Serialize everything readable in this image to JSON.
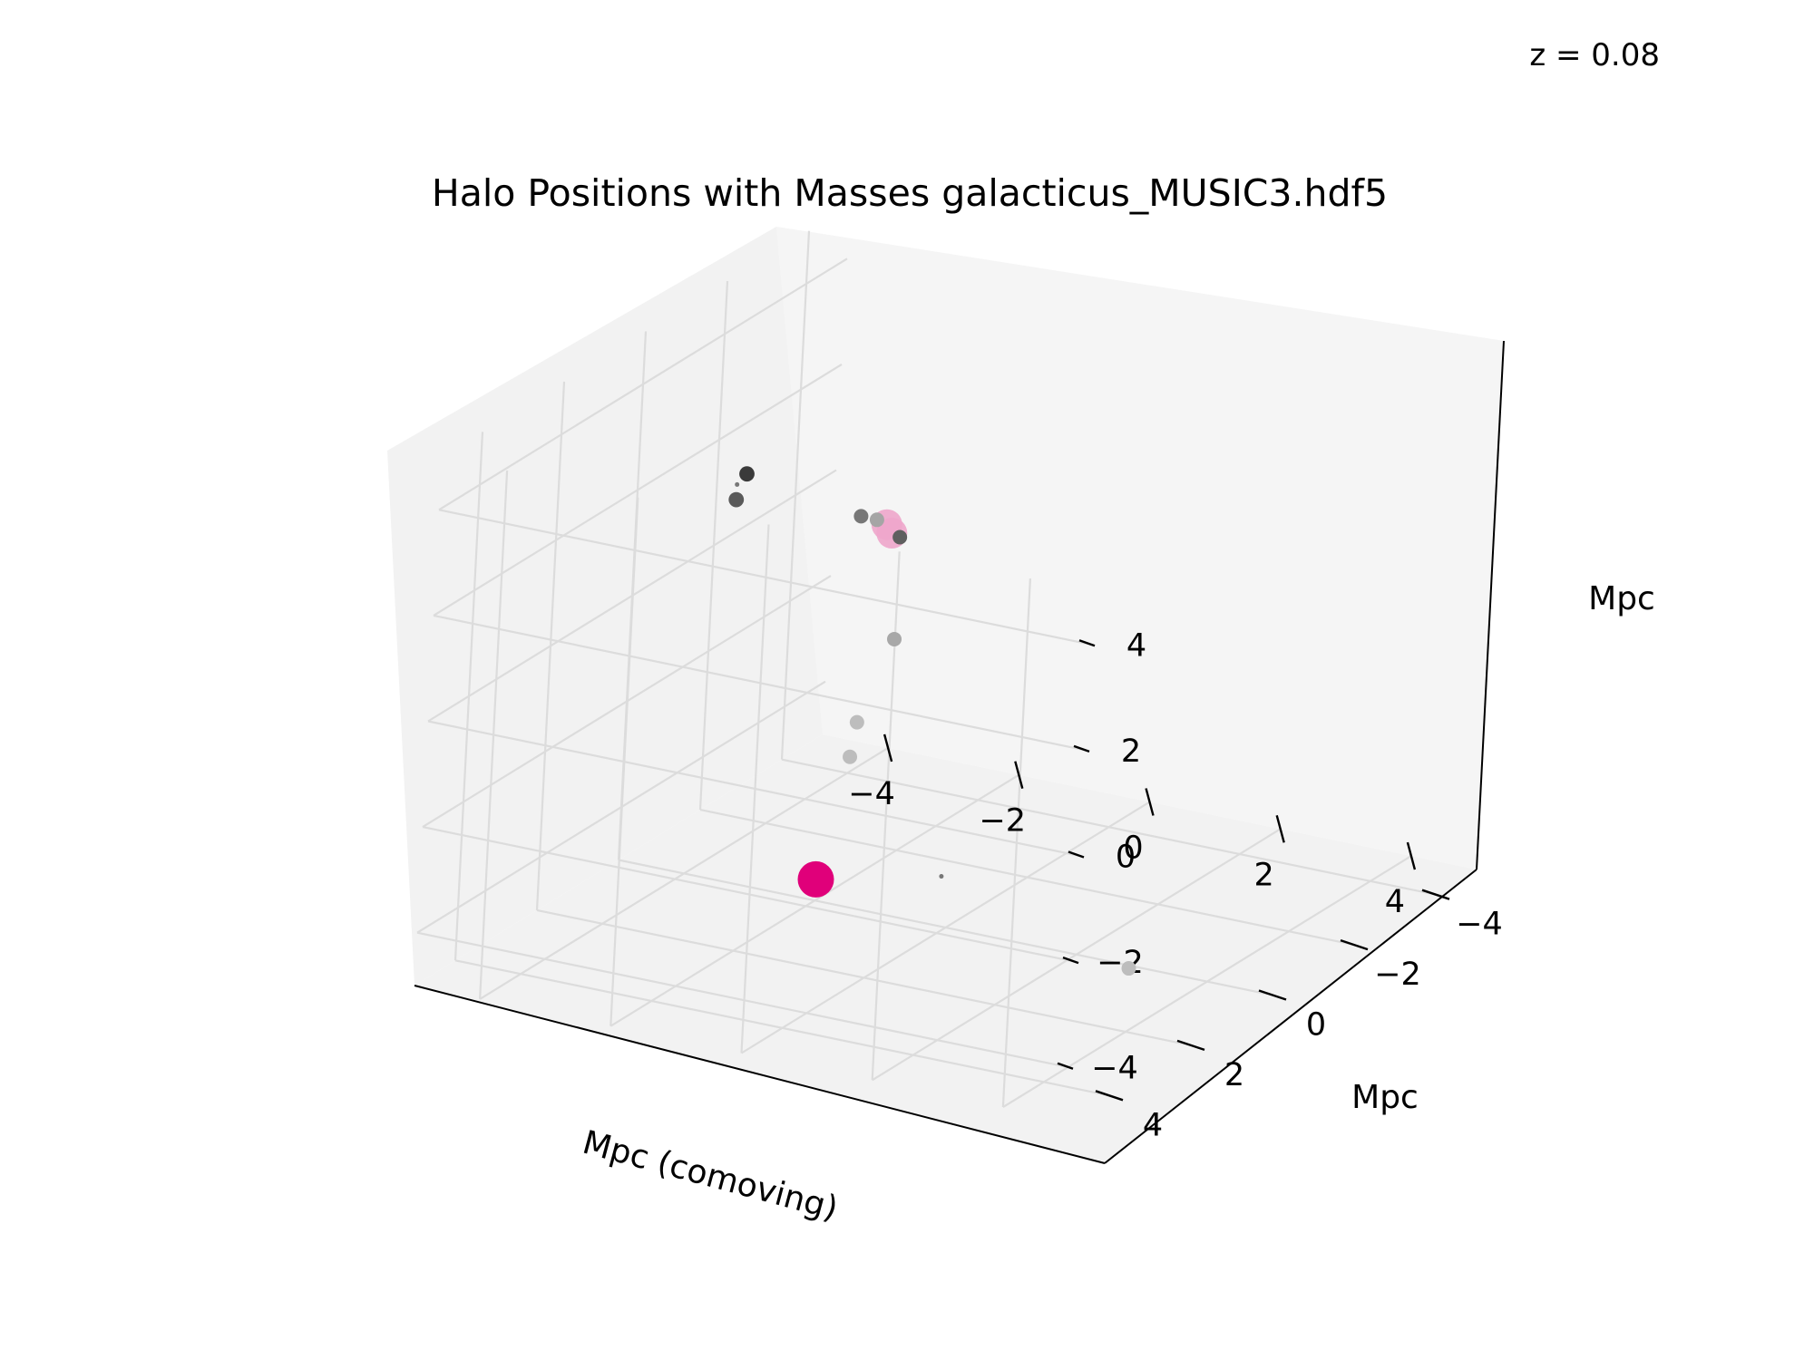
{
  "chart_data": {
    "type": "scatter",
    "title": "Halo Positions with Masses galacticus_MUSIC3.hdf5",
    "annotation": "z = 0.08",
    "xlabel": "Mpc (comoving)",
    "ylabel": "Mpc",
    "zlabel": "Mpc",
    "xlim": [
      -5,
      5
    ],
    "ylim": [
      -5,
      5
    ],
    "zlim": [
      -5,
      5
    ],
    "x_ticks": [
      "−4",
      "−2",
      "0",
      "2",
      "4"
    ],
    "y_ticks": [
      "−4",
      "−2",
      "0",
      "2",
      "4"
    ],
    "z_ticks": [
      "−4",
      "−2",
      "0",
      "2",
      "4"
    ],
    "grid": true,
    "colors": {
      "main_halo": "#e0007a",
      "sub_halo": "#eea6cb",
      "small_halo": "#9a9a9a"
    },
    "points": [
      {
        "x": -2.0,
        "y": 0.0,
        "z": -4.6,
        "mass_class": "main",
        "color": "#e0007a",
        "size": 1.0
      },
      {
        "x": -1.5,
        "y": -0.5,
        "z": 2.0,
        "mass_class": "sub",
        "color": "#eea6cb",
        "size": 0.85
      },
      {
        "x": -1.0,
        "y": 0.2,
        "z": 2.3,
        "mass_class": "sub",
        "color": "#eea6cb",
        "size": 0.85
      },
      {
        "x": -3.0,
        "y": 0.6,
        "z": 3.1,
        "mass_class": "small",
        "color": "#3a3a3a",
        "size": 0.42
      },
      {
        "x": -3.5,
        "y": 0.0,
        "z": 2.2,
        "mass_class": "small",
        "color": "#5a5a5a",
        "size": 0.42
      },
      {
        "x": -3.2,
        "y": 0.5,
        "z": 2.8,
        "mass_class": "tiny",
        "color": "#777777",
        "size": 0.12
      },
      {
        "x": -1.0,
        "y": 1.0,
        "z": 3.0,
        "mass_class": "small",
        "color": "#777777",
        "size": 0.4
      },
      {
        "x": 0.5,
        "y": 2.5,
        "z": 3.7,
        "mass_class": "small",
        "color": "#5f5f5f",
        "size": 0.4
      },
      {
        "x": 0.2,
        "y": 2.6,
        "z": 4.0,
        "mass_class": "small",
        "color": "#a5a5a5",
        "size": 0.4
      },
      {
        "x": -1.0,
        "y": 0.0,
        "z": 0.2,
        "mass_class": "small",
        "color": "#a8a8a8",
        "size": 0.4
      },
      {
        "x": -1.5,
        "y": 0.0,
        "z": -1.5,
        "mass_class": "small",
        "color": "#bdbdbd",
        "size": 0.4
      },
      {
        "x": -1.7,
        "y": -0.2,
        "z": -2.3,
        "mass_class": "small",
        "color": "#bdbdbd",
        "size": 0.4
      },
      {
        "x": 4.0,
        "y": 2.0,
        "z": -3.8,
        "mass_class": "small",
        "color": "#bdbdbd",
        "size": 0.4
      },
      {
        "x": -1.0,
        "y": -1.5,
        "z": -5.0,
        "mass_class": "tiny",
        "color": "#777777",
        "size": 0.12
      }
    ]
  }
}
